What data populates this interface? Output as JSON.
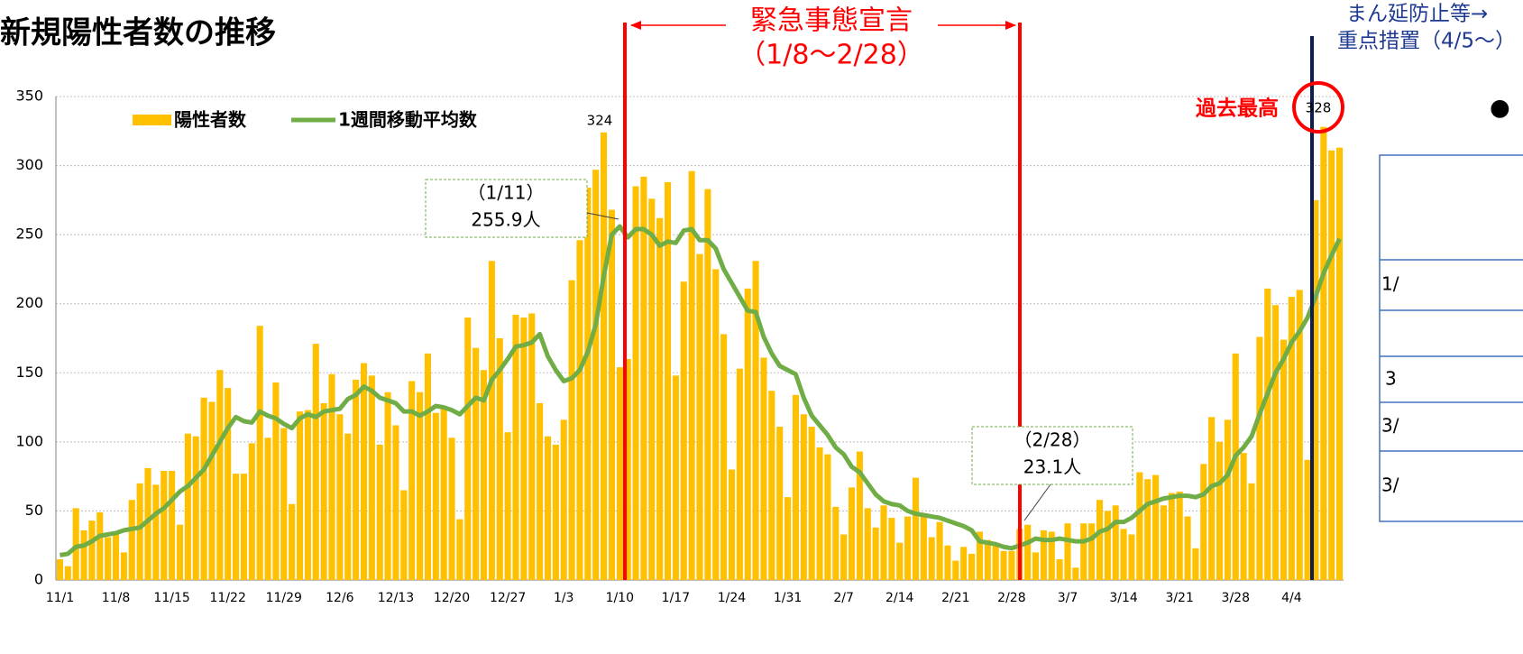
{
  "chart_data": {
    "type": "bar",
    "title": "新規陽性者数の推移",
    "categories": [
      "11/1",
      null,
      null,
      null,
      null,
      null,
      null,
      "11/8",
      null,
      null,
      null,
      null,
      null,
      null,
      "11/15",
      null,
      null,
      null,
      null,
      null,
      null,
      "11/22",
      null,
      null,
      null,
      null,
      null,
      null,
      "11/29",
      null,
      null,
      null,
      null,
      null,
      null,
      "12/6",
      null,
      null,
      null,
      null,
      null,
      null,
      "12/13",
      null,
      null,
      null,
      null,
      null,
      null,
      "12/20",
      null,
      null,
      null,
      null,
      null,
      null,
      "12/27",
      null,
      null,
      null,
      null,
      null,
      null,
      "1/3",
      null,
      null,
      null,
      null,
      null,
      null,
      "1/10",
      null,
      null,
      null,
      null,
      null,
      null,
      "1/17",
      null,
      null,
      null,
      null,
      null,
      null,
      "1/24",
      null,
      null,
      null,
      null,
      null,
      null,
      "1/31",
      null,
      null,
      null,
      null,
      null,
      null,
      "2/7",
      null,
      null,
      null,
      null,
      null,
      null,
      "2/14",
      null,
      null,
      null,
      null,
      null,
      null,
      "2/21",
      null,
      null,
      null,
      null,
      null,
      null,
      "2/28",
      null,
      null,
      null,
      null,
      null,
      null,
      "3/7",
      null,
      null,
      null,
      null,
      null,
      null,
      "3/14",
      null,
      null,
      null,
      null,
      null,
      null,
      "3/21",
      null,
      null,
      null,
      null,
      null,
      null,
      "3/28",
      null,
      null,
      null,
      null,
      null,
      null,
      "4/4",
      null,
      null,
      null,
      null,
      null,
      null
    ],
    "series": [
      {
        "name": "陽性者数",
        "type": "bar",
        "color": "#ffc000",
        "values": [
          15,
          10,
          52,
          36,
          43,
          49,
          31,
          33,
          20,
          58,
          70,
          81,
          69,
          79,
          79,
          40,
          106,
          104,
          132,
          129,
          152,
          139,
          77,
          77,
          99,
          184,
          103,
          143,
          110,
          55,
          122,
          123,
          171,
          128,
          149,
          120,
          106,
          145,
          157,
          148,
          98,
          136,
          112,
          65,
          144,
          136,
          164,
          121,
          125,
          103,
          44,
          190,
          168,
          152,
          231,
          175,
          107,
          192,
          190,
          193,
          128,
          104,
          98,
          116,
          217,
          246,
          284,
          297,
          324,
          268,
          154,
          160,
          285,
          292,
          276,
          262,
          288,
          148,
          216,
          296,
          236,
          283,
          225,
          178,
          80,
          153,
          211,
          231,
          161,
          137,
          111,
          60,
          134,
          120,
          111,
          96,
          91,
          53,
          33,
          67,
          93,
          52,
          38,
          54,
          45,
          27,
          46,
          74,
          46,
          31,
          42,
          25,
          14,
          24,
          19,
          35,
          29,
          26,
          21,
          21,
          37,
          40,
          20,
          36,
          35,
          15,
          41,
          9,
          41,
          41,
          58,
          50,
          54,
          37,
          33,
          78,
          73,
          76,
          54,
          63,
          64,
          46,
          23,
          84,
          118,
          100,
          116,
          164,
          92,
          70,
          176,
          211,
          199,
          174,
          205,
          210,
          87,
          275,
          328,
          311,
          313
        ]
      },
      {
        "name": "1週間移動平均数",
        "type": "line",
        "color": "#70ad47",
        "values": [
          18,
          19,
          24,
          25,
          28,
          32,
          33,
          34,
          36,
          37,
          38,
          43,
          48,
          52,
          58,
          64,
          68,
          74,
          80,
          90,
          100,
          110,
          118,
          115,
          114,
          122,
          119,
          117,
          113,
          110,
          117,
          120,
          118,
          122,
          123,
          124,
          131,
          134,
          140,
          137,
          132,
          130,
          128,
          122,
          122,
          119,
          122,
          126,
          125,
          123,
          120,
          126,
          132,
          130,
          145,
          152,
          160,
          169,
          170,
          172,
          178,
          162,
          152,
          144,
          146,
          152,
          165,
          185,
          220,
          250,
          256,
          248,
          254,
          254,
          250,
          242,
          245,
          244,
          253,
          254,
          246,
          246,
          240,
          225,
          215,
          205,
          195,
          194,
          176,
          164,
          155,
          152,
          149,
          132,
          119,
          112,
          105,
          96,
          91,
          82,
          78,
          70,
          62,
          57,
          55,
          54,
          50,
          48,
          47,
          46,
          45,
          43,
          41,
          39,
          36,
          28,
          27,
          26,
          24,
          23,
          25,
          27,
          30,
          29,
          29,
          30,
          29,
          28,
          28,
          30,
          35,
          37,
          42,
          42,
          45,
          50,
          55,
          57,
          59,
          60,
          61,
          61,
          60,
          62,
          68,
          70,
          76,
          90,
          96,
          104,
          120,
          135,
          150,
          160,
          172,
          180,
          190,
          205,
          222,
          235,
          247
        ]
      }
    ],
    "ylim": [
      0,
      350
    ],
    "yticks": [
      0,
      50,
      100,
      150,
      200,
      250,
      300,
      350
    ],
    "grid": true,
    "annotations": [
      "324",
      "328",
      "過去最高",
      "（1/11）",
      "255.9人",
      "（2/28）",
      "23.1人",
      "緊急事態宣言",
      "（1/8～2/28）",
      "まん延防止等→",
      "重点措置（4/5～）"
    ]
  },
  "side_panel": {
    "bullet": "●",
    "rows": [
      "1/",
      "3",
      "3/",
      "3/"
    ]
  }
}
